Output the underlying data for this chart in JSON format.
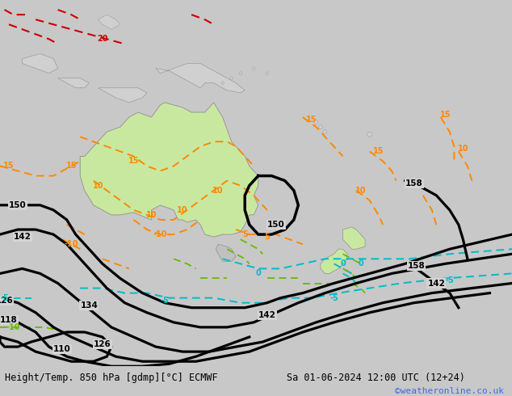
{
  "title_left": "Height/Temp. 850 hPa [gdmp][°C] ECMWF",
  "title_right": "Sa 01-06-2024 12:00 UTC (12+24)",
  "watermark": "©weatheronline.co.uk",
  "watermark_color": "#4169E1",
  "background_color": "#c8c8c8",
  "land_color": "#d2d2d2",
  "australia_color": "#c8e8a0",
  "ocean_color": "#d8d8d8",
  "bottom_bar_color": "#b8b8b8",
  "title_fontsize": 8.5,
  "watermark_fontsize": 8,
  "figsize": [
    6.34,
    4.9
  ],
  "dpi": 100,
  "orange": "#FF8800",
  "cyan": "#00BBCC",
  "green": "#88CC00",
  "black": "#000000",
  "red": "#CC0000"
}
